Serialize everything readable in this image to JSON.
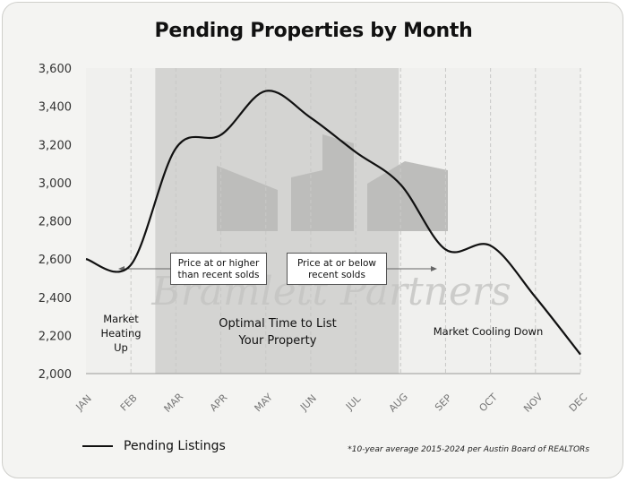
{
  "chart_data": {
    "type": "line",
    "title": "Pending Properties by Month",
    "categories": [
      "JAN",
      "FEB",
      "MAR",
      "APR",
      "MAY",
      "JUN",
      "JUL",
      "AUG",
      "SEP",
      "OCT",
      "NOV",
      "DEC"
    ],
    "series": [
      {
        "name": "Pending Listings",
        "values": [
          2600,
          2570,
          3180,
          3250,
          3480,
          3340,
          3160,
          2990,
          2650,
          2670,
          2400,
          2100
        ]
      }
    ],
    "ylim": [
      2000,
      3600
    ],
    "yticks": [
      "2,000",
      "2,200",
      "2,400",
      "2,600",
      "2,800",
      "3,000",
      "3,200",
      "3,400",
      "3,600"
    ],
    "shaded_region": {
      "from": "MAR",
      "to": "AUG"
    },
    "annotations": {
      "heating": "Market\nHeating\nUp",
      "optimal": "Optimal Time to List\nYour Property",
      "cooling": "Market Cooling Down",
      "price_high": "Price at or higher\nthan recent solds",
      "price_low": "Price at or below\nrecent solds",
      "watermark": "Bramlett Partners"
    },
    "legend": "bottom-left",
    "grid": true
  },
  "footnote": "*10-year average 2015-2024 per Austin Board of REALTORs",
  "colors": {
    "background": "#f4f4f2",
    "shade": "#d4d4d2",
    "line": "#111111",
    "watermark": "#c4c4c2"
  }
}
